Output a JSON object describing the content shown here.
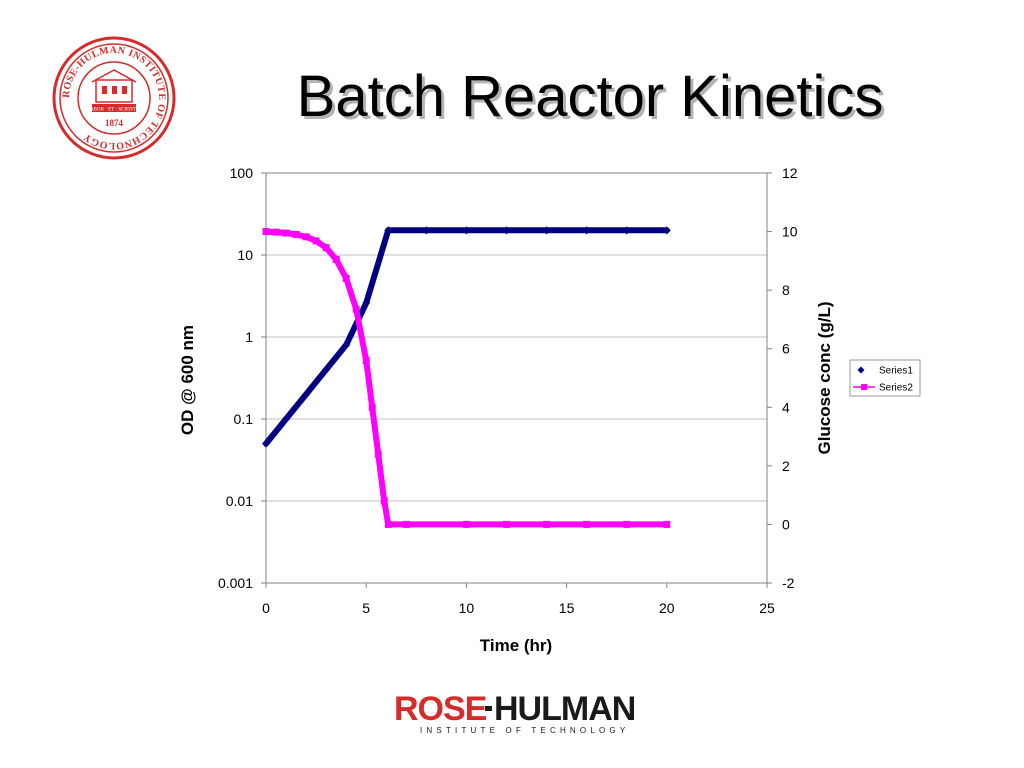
{
  "slide": {
    "title": "Batch Reactor Kinetics",
    "colors": {
      "seal": "#d62b2b",
      "logo_red": "#d62b2b",
      "logo_dark": "#1a1a1a"
    }
  },
  "seal": {
    "icon": "institute-seal-icon",
    "ring_text": "ROSE-HULMAN INSTITUTE OF TECHNOLOGY",
    "ribbon_text": "LABOR · ET · SCIENTIA",
    "year": "1874"
  },
  "footer_logo": {
    "icon": "rose-hulman-logo-icon",
    "wordmark_red": "ROSE",
    "wordmark_dark": "HULMAN",
    "subtitle": "INSTITUTE OF TECHNOLOGY"
  },
  "chart_data": {
    "type": "line",
    "title": "",
    "xlabel": "Time (hr)",
    "ylabel": "OD @ 600 nm",
    "y2label": "Glucose conc (g/L)",
    "xlim": [
      0,
      25
    ],
    "ylim": [
      0.001,
      100
    ],
    "y_scale": "log",
    "y2lim": [
      -2,
      12
    ],
    "x_ticks": [
      "0",
      "5",
      "10",
      "15",
      "20",
      "25"
    ],
    "y_ticks": [
      "0.001",
      "0.01",
      "0.1",
      "1",
      "10",
      "100"
    ],
    "y2_ticks": [
      "-2",
      "0",
      "2",
      "4",
      "6",
      "8",
      "10",
      "12"
    ],
    "grid": "horizontal",
    "legend": "right",
    "series": [
      {
        "name": "Series1",
        "axis": "left",
        "color": "#000080",
        "marker": "diamond",
        "x": [
          0,
          1,
          2,
          3,
          4,
          5,
          6.1,
          8,
          10,
          12,
          14,
          16,
          18,
          20
        ],
        "y": [
          0.05,
          0.1,
          0.2,
          0.4,
          0.8,
          2.6,
          20,
          20,
          20,
          20,
          20,
          20,
          20,
          20
        ]
      },
      {
        "name": "Series2",
        "axis": "right",
        "color": "#ff00ff",
        "marker": "square",
        "x": [
          0,
          0.5,
          1,
          1.5,
          2,
          2.5,
          3,
          3.5,
          4,
          4.5,
          5,
          5.3,
          5.6,
          5.9,
          6.1,
          7,
          10,
          12,
          14,
          16,
          18,
          20
        ],
        "y": [
          10.0,
          9.98,
          9.95,
          9.9,
          9.82,
          9.68,
          9.45,
          9.05,
          8.4,
          7.35,
          5.6,
          4.0,
          2.4,
          0.8,
          0.0,
          0.0,
          0.0,
          0.0,
          0.0,
          0.0,
          0.0,
          0.0
        ]
      }
    ]
  }
}
